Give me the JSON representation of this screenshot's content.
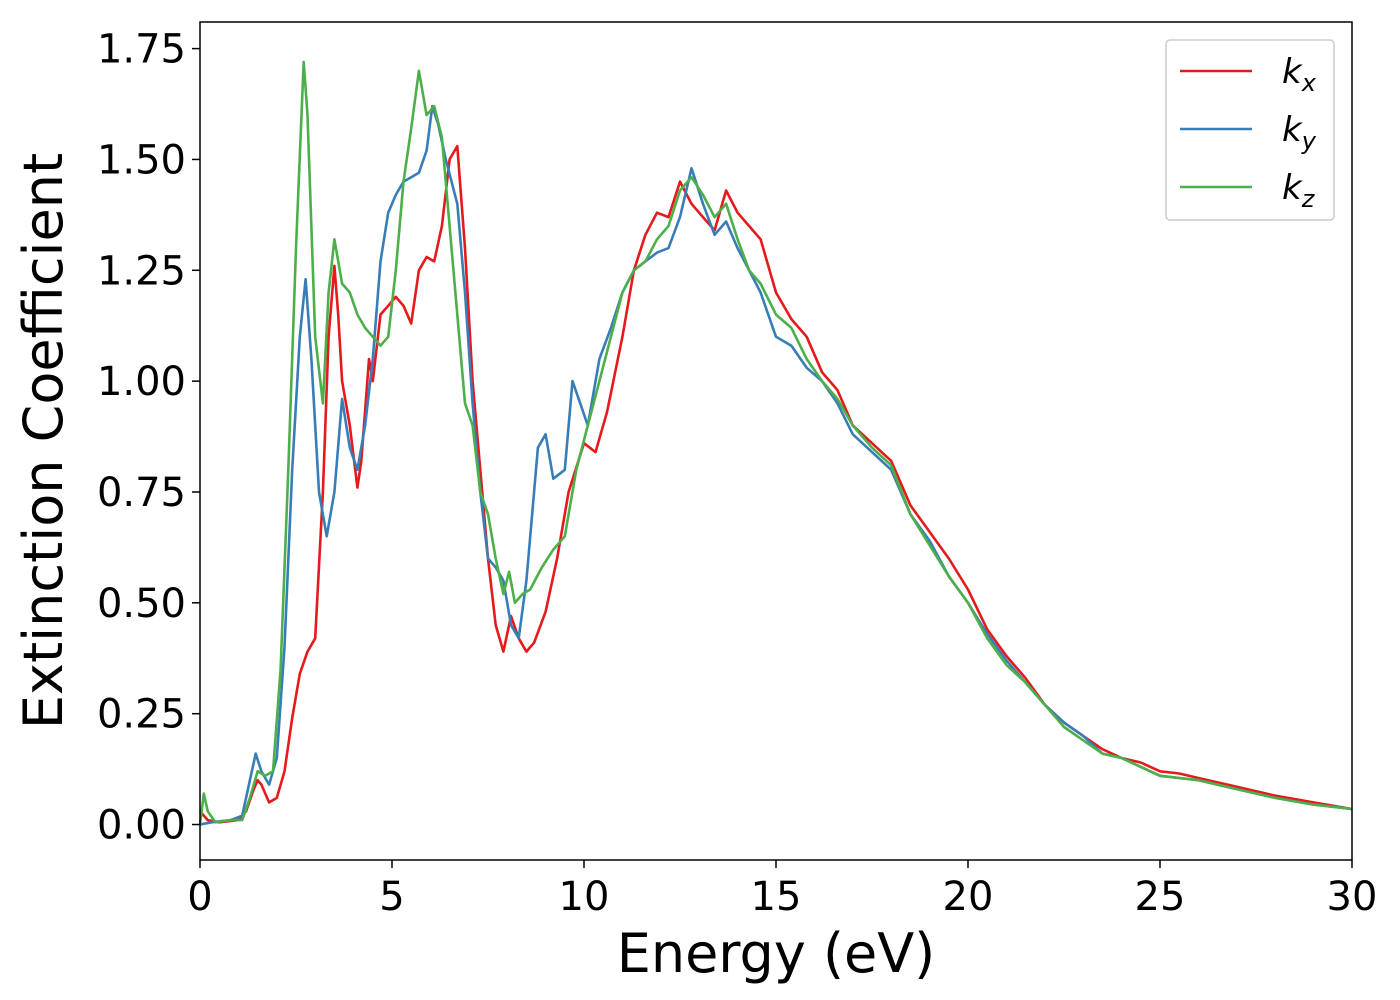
{
  "chart_data": {
    "type": "line",
    "xlabel": "Energy (eV)",
    "ylabel": "Extinction Coefficient",
    "xlim": [
      0,
      30
    ],
    "ylim": [
      -0.08,
      1.81
    ],
    "xticks": [
      0,
      5,
      10,
      15,
      20,
      25,
      30
    ],
    "xtick_labels": [
      "0",
      "5",
      "10",
      "15",
      "20",
      "25",
      "30"
    ],
    "yticks": [
      0.0,
      0.25,
      0.5,
      0.75,
      1.0,
      1.25,
      1.5,
      1.75
    ],
    "ytick_labels": [
      "0.00",
      "0.25",
      "0.50",
      "0.75",
      "1.00",
      "1.25",
      "1.50",
      "1.75"
    ],
    "grid": false,
    "legend_position": "top-right",
    "series": [
      {
        "name": "k_x",
        "legend_base": "k",
        "legend_sub": "x",
        "color": "#e41a1c",
        "points": [
          [
            0,
            0.03
          ],
          [
            0.2,
            0.01
          ],
          [
            0.5,
            0.005
          ],
          [
            1.0,
            0.01
          ],
          [
            1.2,
            0.03
          ],
          [
            1.4,
            0.08
          ],
          [
            1.5,
            0.1
          ],
          [
            1.6,
            0.09
          ],
          [
            1.8,
            0.05
          ],
          [
            2.0,
            0.06
          ],
          [
            2.2,
            0.12
          ],
          [
            2.4,
            0.24
          ],
          [
            2.6,
            0.34
          ],
          [
            2.8,
            0.39
          ],
          [
            3.0,
            0.42
          ],
          [
            3.2,
            0.75
          ],
          [
            3.35,
            1.1
          ],
          [
            3.5,
            1.26
          ],
          [
            3.6,
            1.15
          ],
          [
            3.7,
            1.0
          ],
          [
            3.9,
            0.9
          ],
          [
            4.1,
            0.76
          ],
          [
            4.2,
            0.82
          ],
          [
            4.4,
            1.05
          ],
          [
            4.5,
            1.0
          ],
          [
            4.7,
            1.15
          ],
          [
            4.9,
            1.17
          ],
          [
            5.1,
            1.19
          ],
          [
            5.3,
            1.17
          ],
          [
            5.5,
            1.13
          ],
          [
            5.7,
            1.25
          ],
          [
            5.9,
            1.28
          ],
          [
            6.1,
            1.27
          ],
          [
            6.3,
            1.35
          ],
          [
            6.5,
            1.5
          ],
          [
            6.7,
            1.53
          ],
          [
            6.9,
            1.3
          ],
          [
            7.1,
            1.0
          ],
          [
            7.3,
            0.8
          ],
          [
            7.5,
            0.6
          ],
          [
            7.7,
            0.45
          ],
          [
            7.9,
            0.39
          ],
          [
            8.1,
            0.47
          ],
          [
            8.3,
            0.42
          ],
          [
            8.5,
            0.39
          ],
          [
            8.7,
            0.41
          ],
          [
            9.0,
            0.48
          ],
          [
            9.3,
            0.6
          ],
          [
            9.6,
            0.75
          ],
          [
            10.0,
            0.86
          ],
          [
            10.3,
            0.84
          ],
          [
            10.6,
            0.93
          ],
          [
            11.0,
            1.1
          ],
          [
            11.3,
            1.25
          ],
          [
            11.6,
            1.33
          ],
          [
            11.9,
            1.38
          ],
          [
            12.2,
            1.37
          ],
          [
            12.5,
            1.45
          ],
          [
            12.8,
            1.4
          ],
          [
            13.1,
            1.37
          ],
          [
            13.4,
            1.34
          ],
          [
            13.7,
            1.43
          ],
          [
            14.0,
            1.38
          ],
          [
            14.3,
            1.35
          ],
          [
            14.6,
            1.32
          ],
          [
            15.0,
            1.2
          ],
          [
            15.4,
            1.14
          ],
          [
            15.8,
            1.1
          ],
          [
            16.2,
            1.02
          ],
          [
            16.6,
            0.98
          ],
          [
            17.0,
            0.9
          ],
          [
            17.5,
            0.86
          ],
          [
            18.0,
            0.82
          ],
          [
            18.5,
            0.72
          ],
          [
            19.0,
            0.66
          ],
          [
            19.5,
            0.6
          ],
          [
            20.0,
            0.53
          ],
          [
            20.5,
            0.44
          ],
          [
            21.0,
            0.38
          ],
          [
            21.5,
            0.33
          ],
          [
            22.0,
            0.27
          ],
          [
            22.5,
            0.23
          ],
          [
            23.0,
            0.2
          ],
          [
            23.5,
            0.17
          ],
          [
            24.0,
            0.15
          ],
          [
            24.5,
            0.14
          ],
          [
            25.0,
            0.12
          ],
          [
            25.5,
            0.115
          ],
          [
            26.0,
            0.105
          ],
          [
            27.0,
            0.085
          ],
          [
            28.0,
            0.065
          ],
          [
            29.0,
            0.05
          ],
          [
            30.0,
            0.035
          ]
        ]
      },
      {
        "name": "k_y",
        "legend_base": "k",
        "legend_sub": "y",
        "color": "#377eb8",
        "points": [
          [
            0,
            0.0
          ],
          [
            0.3,
            0.005
          ],
          [
            0.8,
            0.01
          ],
          [
            1.1,
            0.02
          ],
          [
            1.3,
            0.1
          ],
          [
            1.45,
            0.16
          ],
          [
            1.6,
            0.12
          ],
          [
            1.8,
            0.09
          ],
          [
            2.0,
            0.15
          ],
          [
            2.2,
            0.4
          ],
          [
            2.4,
            0.8
          ],
          [
            2.6,
            1.1
          ],
          [
            2.75,
            1.23
          ],
          [
            2.9,
            1.05
          ],
          [
            3.1,
            0.75
          ],
          [
            3.3,
            0.65
          ],
          [
            3.5,
            0.75
          ],
          [
            3.7,
            0.96
          ],
          [
            3.9,
            0.85
          ],
          [
            4.1,
            0.8
          ],
          [
            4.3,
            0.9
          ],
          [
            4.5,
            1.05
          ],
          [
            4.7,
            1.27
          ],
          [
            4.9,
            1.38
          ],
          [
            5.1,
            1.42
          ],
          [
            5.3,
            1.45
          ],
          [
            5.5,
            1.46
          ],
          [
            5.7,
            1.47
          ],
          [
            5.9,
            1.52
          ],
          [
            6.05,
            1.62
          ],
          [
            6.2,
            1.58
          ],
          [
            6.4,
            1.5
          ],
          [
            6.7,
            1.4
          ],
          [
            6.9,
            1.2
          ],
          [
            7.1,
            0.95
          ],
          [
            7.3,
            0.75
          ],
          [
            7.5,
            0.6
          ],
          [
            7.7,
            0.58
          ],
          [
            7.9,
            0.55
          ],
          [
            8.1,
            0.45
          ],
          [
            8.3,
            0.42
          ],
          [
            8.5,
            0.55
          ],
          [
            8.8,
            0.85
          ],
          [
            9.0,
            0.88
          ],
          [
            9.2,
            0.78
          ],
          [
            9.5,
            0.8
          ],
          [
            9.7,
            1.0
          ],
          [
            9.9,
            0.95
          ],
          [
            10.1,
            0.9
          ],
          [
            10.4,
            1.05
          ],
          [
            10.7,
            1.12
          ],
          [
            11.0,
            1.2
          ],
          [
            11.3,
            1.25
          ],
          [
            11.6,
            1.27
          ],
          [
            11.9,
            1.29
          ],
          [
            12.2,
            1.3
          ],
          [
            12.5,
            1.37
          ],
          [
            12.8,
            1.48
          ],
          [
            13.1,
            1.4
          ],
          [
            13.4,
            1.33
          ],
          [
            13.7,
            1.36
          ],
          [
            14.0,
            1.3
          ],
          [
            14.3,
            1.25
          ],
          [
            14.6,
            1.2
          ],
          [
            15.0,
            1.1
          ],
          [
            15.4,
            1.08
          ],
          [
            15.8,
            1.03
          ],
          [
            16.2,
            1.0
          ],
          [
            16.6,
            0.95
          ],
          [
            17.0,
            0.88
          ],
          [
            17.5,
            0.84
          ],
          [
            18.0,
            0.8
          ],
          [
            18.5,
            0.7
          ],
          [
            19.0,
            0.64
          ],
          [
            19.5,
            0.56
          ],
          [
            20.0,
            0.5
          ],
          [
            20.5,
            0.43
          ],
          [
            21.0,
            0.37
          ],
          [
            21.5,
            0.32
          ],
          [
            22.0,
            0.27
          ],
          [
            22.5,
            0.23
          ],
          [
            23.0,
            0.2
          ],
          [
            23.5,
            0.16
          ],
          [
            24.0,
            0.15
          ],
          [
            24.5,
            0.13
          ],
          [
            25.0,
            0.11
          ],
          [
            25.5,
            0.105
          ],
          [
            26.0,
            0.1
          ],
          [
            27.0,
            0.08
          ],
          [
            28.0,
            0.06
          ],
          [
            29.0,
            0.045
          ],
          [
            30.0,
            0.035
          ]
        ]
      },
      {
        "name": "k_z",
        "legend_base": "k",
        "legend_sub": "z",
        "color": "#4daf4a",
        "points": [
          [
            0,
            0.0
          ],
          [
            0.1,
            0.07
          ],
          [
            0.2,
            0.03
          ],
          [
            0.4,
            0.005
          ],
          [
            0.8,
            0.01
          ],
          [
            1.1,
            0.01
          ],
          [
            1.3,
            0.06
          ],
          [
            1.5,
            0.12
          ],
          [
            1.7,
            0.11
          ],
          [
            1.9,
            0.12
          ],
          [
            2.1,
            0.35
          ],
          [
            2.3,
            0.8
          ],
          [
            2.5,
            1.3
          ],
          [
            2.7,
            1.72
          ],
          [
            2.8,
            1.6
          ],
          [
            3.0,
            1.1
          ],
          [
            3.2,
            0.95
          ],
          [
            3.35,
            1.2
          ],
          [
            3.5,
            1.32
          ],
          [
            3.7,
            1.22
          ],
          [
            3.9,
            1.2
          ],
          [
            4.1,
            1.15
          ],
          [
            4.3,
            1.12
          ],
          [
            4.5,
            1.1
          ],
          [
            4.7,
            1.08
          ],
          [
            4.9,
            1.1
          ],
          [
            5.1,
            1.25
          ],
          [
            5.3,
            1.45
          ],
          [
            5.5,
            1.57
          ],
          [
            5.7,
            1.7
          ],
          [
            5.9,
            1.6
          ],
          [
            6.1,
            1.62
          ],
          [
            6.3,
            1.55
          ],
          [
            6.5,
            1.35
          ],
          [
            6.7,
            1.15
          ],
          [
            6.9,
            0.95
          ],
          [
            7.1,
            0.9
          ],
          [
            7.3,
            0.75
          ],
          [
            7.5,
            0.7
          ],
          [
            7.7,
            0.6
          ],
          [
            7.9,
            0.52
          ],
          [
            8.05,
            0.57
          ],
          [
            8.2,
            0.5
          ],
          [
            8.4,
            0.52
          ],
          [
            8.6,
            0.53
          ],
          [
            8.9,
            0.58
          ],
          [
            9.2,
            0.62
          ],
          [
            9.5,
            0.65
          ],
          [
            9.8,
            0.8
          ],
          [
            10.1,
            0.9
          ],
          [
            10.4,
            1.0
          ],
          [
            10.7,
            1.1
          ],
          [
            11.0,
            1.2
          ],
          [
            11.3,
            1.25
          ],
          [
            11.6,
            1.27
          ],
          [
            11.9,
            1.32
          ],
          [
            12.2,
            1.35
          ],
          [
            12.5,
            1.43
          ],
          [
            12.8,
            1.46
          ],
          [
            13.1,
            1.42
          ],
          [
            13.4,
            1.37
          ],
          [
            13.7,
            1.4
          ],
          [
            14.0,
            1.32
          ],
          [
            14.3,
            1.25
          ],
          [
            14.6,
            1.22
          ],
          [
            15.0,
            1.15
          ],
          [
            15.4,
            1.12
          ],
          [
            15.8,
            1.05
          ],
          [
            16.2,
            1.0
          ],
          [
            16.6,
            0.96
          ],
          [
            17.0,
            0.9
          ],
          [
            17.5,
            0.85
          ],
          [
            18.0,
            0.81
          ],
          [
            18.5,
            0.7
          ],
          [
            19.0,
            0.63
          ],
          [
            19.5,
            0.56
          ],
          [
            20.0,
            0.5
          ],
          [
            20.5,
            0.42
          ],
          [
            21.0,
            0.36
          ],
          [
            21.5,
            0.32
          ],
          [
            22.0,
            0.27
          ],
          [
            22.5,
            0.22
          ],
          [
            23.0,
            0.19
          ],
          [
            23.5,
            0.16
          ],
          [
            24.0,
            0.15
          ],
          [
            24.5,
            0.13
          ],
          [
            25.0,
            0.11
          ],
          [
            25.5,
            0.105
          ],
          [
            26.0,
            0.1
          ],
          [
            27.0,
            0.08
          ],
          [
            28.0,
            0.06
          ],
          [
            29.0,
            0.045
          ],
          [
            30.0,
            0.035
          ]
        ]
      }
    ]
  }
}
